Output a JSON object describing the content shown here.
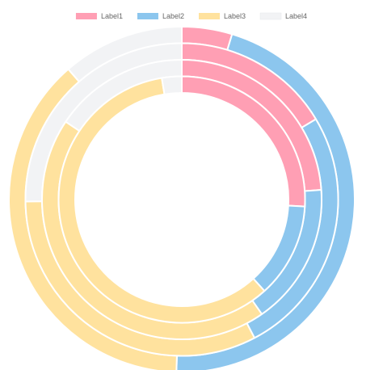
{
  "chart_data": {
    "type": "doughnut",
    "legend_position": "top",
    "categories": [
      "Label1",
      "Label2",
      "Label3",
      "Label4"
    ],
    "colors": [
      "#ff9fb4",
      "#8cc6ee",
      "#ffe29e",
      "#f2f3f5"
    ],
    "series": [
      {
        "values": [
          4.7,
          45.8,
          38.1,
          11.4
        ]
      },
      {
        "values": [
          16.4,
          25.9,
          32.5,
          25.2
        ]
      },
      {
        "values": [
          23.9,
          16.4,
          44.1,
          15.6
        ]
      },
      {
        "values": [
          25.9,
          12.4,
          59.1,
          2.6
        ]
      }
    ]
  }
}
